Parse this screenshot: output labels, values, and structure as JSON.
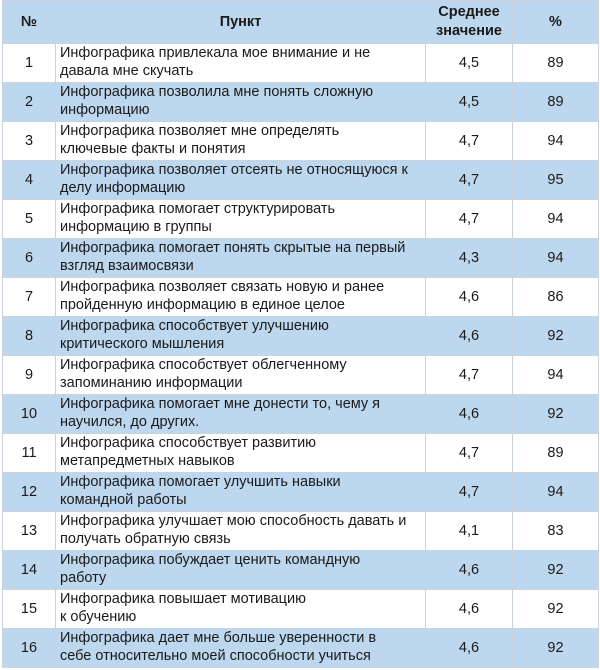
{
  "table": {
    "headers": {
      "num": "№",
      "item": "Пункт",
      "avg": "Среднее\nзначение",
      "pct": "%"
    },
    "rows": [
      {
        "num": "1",
        "item": "Инфографика привлекала мое внимание и не\nдавала мне скучать",
        "avg": "4,5",
        "pct": "89"
      },
      {
        "num": "2",
        "item": "Инфографика позволила мне понять сложную\nинформацию",
        "avg": "4,5",
        "pct": "89"
      },
      {
        "num": "3",
        "item": "Инфографика позволяет мне определять\nключевые факты и понятия",
        "avg": "4,7",
        "pct": "94"
      },
      {
        "num": "4",
        "item": "Инфографика позволяет отсеять не относящуюся к\nделу информацию",
        "avg": "4,7",
        "pct": "95"
      },
      {
        "num": "5",
        "item": "Инфографика помогает структурировать\nинформацию в группы",
        "avg": "4,7",
        "pct": "94"
      },
      {
        "num": "6",
        "item": "Инфографика помогает понять скрытые на первый\nвзгляд взаимосвязи",
        "avg": "4,3",
        "pct": "94"
      },
      {
        "num": "7",
        "item": "Инфографика позволяет связать новую и ранее\nпройденную информацию в единое целое",
        "avg": "4,6",
        "pct": "86"
      },
      {
        "num": "8",
        "item": "Инфографика способствует улучшению\nкритического мышления",
        "avg": "4,6",
        "pct": "92"
      },
      {
        "num": "9",
        "item": "Инфографика способствует облегченному\nзапоминанию информации",
        "avg": "4,7",
        "pct": "94"
      },
      {
        "num": "10",
        "item": "Инфографика помогает мне донести то, чему я\nнаучился, до других.",
        "avg": "4,6",
        "pct": "92"
      },
      {
        "num": "11",
        "item": "Инфографика способствует развитию\nметапредметных навыков",
        "avg": "4,7",
        "pct": "89"
      },
      {
        "num": "12",
        "item": "Инфографика помогает улучшить навыки\nкомандной работы",
        "avg": "4,7",
        "pct": "94"
      },
      {
        "num": "13",
        "item": "Инфографика улучшает мою способность давать и\nполучать обратную связь",
        "avg": "4,1",
        "pct": "83"
      },
      {
        "num": "14",
        "item": "Инфографика побуждает ценить командную\nработу",
        "avg": "4,6",
        "pct": "92"
      },
      {
        "num": "15",
        "item": "Инфографика повышает мотивацию\nк обучению",
        "avg": "4,6",
        "pct": "92"
      },
      {
        "num": "16",
        "item": "Инфографика дает мне больше уверенности в\nсебе относительно моей способности учиться",
        "avg": "4,6",
        "pct": "92"
      }
    ]
  },
  "colors": {
    "header_bg": "#bdd7ee",
    "stripe_bg": "#bdd7ee",
    "row_bg": "#ffffff",
    "border": "#c8d3de"
  }
}
